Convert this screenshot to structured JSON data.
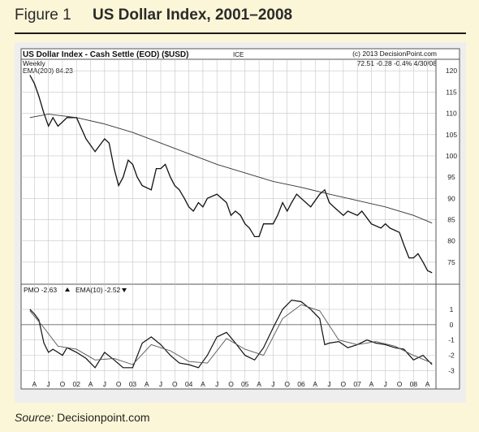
{
  "figure": {
    "label": "Figure 1",
    "title": "US Dollar Index, 2001–2008",
    "source_prefix": "Source:",
    "source_name": "Decisionpoint.com"
  },
  "chart_header": {
    "title": "US Dollar Index - Cash Settle (EOD) ($USD)",
    "exchange": "ICE",
    "copyright": "(c) 2013 DecisionPoint.com",
    "quote": "72.51 -0.28 -0.4% 4/30/08",
    "period": "Weekly",
    "ema_label": "EMA(200) 84.23"
  },
  "colors": {
    "panel_bg": "#ffffff",
    "grid": "#c6c6c6",
    "price": "#111111",
    "ema": "#333333"
  },
  "chart_data": [
    {
      "type": "line",
      "x_ticks": [
        "A",
        "J",
        "O",
        "02",
        "A",
        "J",
        "O",
        "03",
        "A",
        "J",
        "O",
        "04",
        "A",
        "J",
        "O",
        "05",
        "A",
        "J",
        "O",
        "06",
        "A",
        "J",
        "O",
        "07",
        "A",
        "J",
        "O",
        "08",
        "A"
      ],
      "ylim": [
        70,
        121
      ],
      "y_ticks": [
        75,
        80,
        85,
        90,
        95,
        100,
        105,
        110,
        115,
        120
      ],
      "series": [
        {
          "name": "",
          "x": [
            2001.17,
            2001.25,
            2001.33,
            2001.42,
            2001.5,
            2001.58,
            2001.67,
            2001.75,
            2001.83,
            2002.0,
            2002.17,
            2002.33,
            2002.5,
            2002.58,
            2002.67,
            2002.75,
            2002.83,
            2002.92,
            2003.0,
            2003.08,
            2003.17,
            2003.33,
            2003.42,
            2003.5,
            2003.58,
            2003.67,
            2003.75,
            2003.83,
            2003.92,
            2004.0,
            2004.08,
            2004.17,
            2004.25,
            2004.33,
            2004.5,
            2004.67,
            2004.75,
            2004.83,
            2004.92,
            2005.0,
            2005.08,
            2005.17,
            2005.25,
            2005.33,
            2005.5,
            2005.58,
            2005.67,
            2005.75,
            2005.83,
            2005.92,
            2006.0,
            2006.17,
            2006.33,
            2006.42,
            2006.5,
            2006.58,
            2006.75,
            2006.83,
            2007.0,
            2007.08,
            2007.25,
            2007.42,
            2007.5,
            2007.58,
            2007.75,
            2007.83,
            2007.92,
            2008.0,
            2008.08,
            2008.17,
            2008.25,
            2008.33
          ],
          "values": [
            119,
            117,
            114,
            110,
            107,
            109,
            107,
            108,
            109,
            109,
            104,
            101,
            104,
            103,
            97,
            93,
            95,
            99,
            98,
            95,
            93,
            92,
            97,
            97,
            98,
            95,
            93,
            92,
            90,
            88,
            87,
            89,
            88,
            90,
            91,
            89,
            86,
            87,
            86,
            84,
            83,
            81,
            81,
            84,
            84,
            86,
            89,
            87,
            89,
            91,
            90,
            88,
            91,
            92,
            89,
            88,
            86,
            87,
            86,
            87,
            84,
            83,
            84,
            83,
            82,
            79,
            76,
            76,
            77,
            75,
            73,
            72.5
          ]
        },
        {
          "name": "",
          "x": [
            2001.17,
            2001.5,
            2002.0,
            2002.5,
            2003.0,
            2003.5,
            2004.0,
            2004.5,
            2005.0,
            2005.5,
            2006.0,
            2006.5,
            2007.0,
            2007.5,
            2008.0,
            2008.33
          ],
          "values": [
            109,
            109.8,
            109,
            107.5,
            105.5,
            103,
            100.5,
            98,
            96,
            94,
            92.6,
            91,
            89.5,
            88,
            86,
            84.2
          ]
        }
      ]
    },
    {
      "type": "line",
      "legend": [
        "PMO -2.63",
        "EMA(10) -2.52"
      ],
      "ylim": [
        -3.5,
        2
      ],
      "y_ticks": [
        1,
        0,
        -1,
        -2,
        -3
      ],
      "series": [
        {
          "name": "PMO",
          "x": [
            2001.17,
            2001.25,
            2001.33,
            2001.42,
            2001.5,
            2001.58,
            2001.67,
            2001.75,
            2001.83,
            2002.0,
            2002.17,
            2002.33,
            2002.5,
            2002.67,
            2002.83,
            2003.0,
            2003.17,
            2003.33,
            2003.5,
            2003.67,
            2003.83,
            2004.0,
            2004.17,
            2004.33,
            2004.5,
            2004.67,
            2004.83,
            2005.0,
            2005.17,
            2005.33,
            2005.5,
            2005.67,
            2005.83,
            2006.0,
            2006.17,
            2006.33,
            2006.42,
            2006.5,
            2006.67,
            2006.83,
            2007.0,
            2007.17,
            2007.33,
            2007.5,
            2007.67,
            2007.83,
            2008.0,
            2008.17,
            2008.33
          ],
          "values": [
            1.0,
            0.7,
            0.3,
            -1.2,
            -1.8,
            -1.6,
            -1.8,
            -2.0,
            -1.5,
            -1.8,
            -2.2,
            -2.8,
            -1.8,
            -2.3,
            -2.8,
            -2.8,
            -1.2,
            -0.8,
            -1.3,
            -2.0,
            -2.5,
            -2.6,
            -2.8,
            -2.0,
            -0.8,
            -0.5,
            -1.2,
            -2.0,
            -2.3,
            -1.5,
            -0.2,
            1.0,
            1.6,
            1.5,
            1.0,
            0.4,
            -1.3,
            -1.2,
            -1.1,
            -1.5,
            -1.3,
            -1.0,
            -1.2,
            -1.3,
            -1.5,
            -1.6,
            -2.3,
            -2.0,
            -2.6
          ]
        },
        {
          "name": "EMA(10)",
          "x": [
            2001.17,
            2001.42,
            2001.67,
            2002.0,
            2002.33,
            2002.67,
            2003.0,
            2003.33,
            2003.67,
            2004.0,
            2004.33,
            2004.67,
            2005.0,
            2005.33,
            2005.67,
            2006.0,
            2006.33,
            2006.67,
            2007.0,
            2007.33,
            2007.67,
            2008.0,
            2008.33
          ],
          "values": [
            0.9,
            -0.2,
            -1.4,
            -1.6,
            -2.3,
            -2.2,
            -2.6,
            -1.3,
            -1.7,
            -2.4,
            -2.5,
            -0.9,
            -1.6,
            -2.0,
            0.4,
            1.3,
            0.9,
            -1.0,
            -1.3,
            -1.1,
            -1.4,
            -2.0,
            -2.5
          ]
        }
      ]
    }
  ]
}
